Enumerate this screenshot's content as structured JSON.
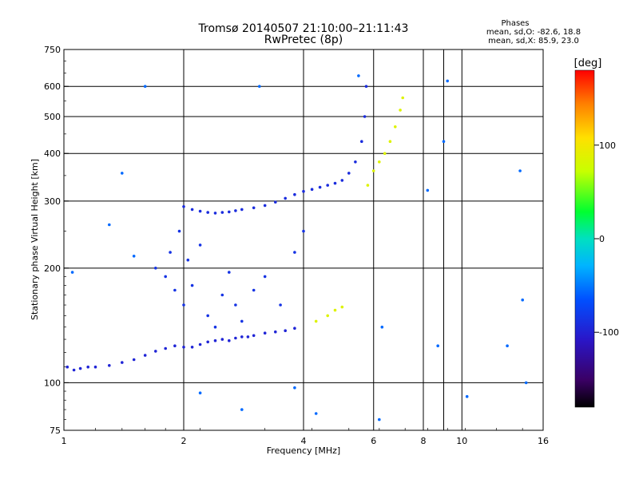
{
  "chart_data": {
    "type": "scatter",
    "title": "Tromsø 20140507 21:10:00–21:11:43",
    "subtitle": "RwPretec (8p)",
    "xlabel": "Frequency [MHz]",
    "ylabel": "Stationary phase Virtual Height [km]",
    "x_scale": "log",
    "y_scale": "log",
    "xlim": [
      1,
      16
    ],
    "ylim": [
      75,
      750
    ],
    "x_ticks": [
      1,
      2,
      4,
      6,
      8,
      10,
      16
    ],
    "x_tick_labels": [
      "1",
      "2",
      "4",
      "6",
      "8",
      "10",
      "16"
    ],
    "x_grid": [
      2,
      4,
      6,
      8,
      9,
      10
    ],
    "y_ticks": [
      75,
      100,
      200,
      300,
      400,
      500,
      600,
      750
    ],
    "y_tick_labels": [
      "75",
      "100",
      "200",
      "300",
      "400",
      "500",
      "600",
      "750"
    ],
    "y_grid": [
      100,
      200,
      300,
      400,
      500,
      600
    ],
    "grid": true,
    "phase_stats": {
      "heading": "Phases",
      "line_o": "mean, sd,O: -82.6, 18.8",
      "line_x": "mean, sd,X:  85.9, 23.0"
    },
    "colorbar": {
      "label": "[deg]",
      "min": -180,
      "max": 180,
      "ticks": [
        100,
        0,
        -100
      ],
      "tick_labels": [
        "100",
        "0",
        "-100"
      ],
      "colormap": "rainbow"
    },
    "series": [
      {
        "role": "o_mode_low_trace",
        "points": [
          [
            1.02,
            110
          ],
          [
            1.06,
            108
          ],
          [
            1.1,
            109
          ],
          [
            1.15,
            110
          ],
          [
            1.2,
            110
          ],
          [
            1.3,
            111
          ],
          [
            1.4,
            113
          ],
          [
            1.5,
            115
          ],
          [
            1.6,
            118
          ],
          [
            1.7,
            121
          ],
          [
            1.8,
            123
          ],
          [
            1.9,
            125
          ],
          [
            2.0,
            124
          ],
          [
            2.1,
            124
          ],
          [
            2.2,
            126
          ],
          [
            2.3,
            128
          ],
          [
            2.4,
            129
          ],
          [
            2.5,
            130
          ],
          [
            2.6,
            129
          ],
          [
            2.7,
            131
          ],
          [
            2.8,
            132
          ],
          [
            2.9,
            132
          ],
          [
            3.0,
            133
          ],
          [
            3.2,
            135
          ],
          [
            3.4,
            136
          ],
          [
            3.6,
            137
          ],
          [
            3.8,
            139
          ]
        ],
        "phase": -100
      },
      {
        "role": "o_mode_f_trace",
        "points": [
          [
            2.0,
            290
          ],
          [
            2.1,
            285
          ],
          [
            2.2,
            282
          ],
          [
            2.3,
            280
          ],
          [
            2.4,
            279
          ],
          [
            2.5,
            280
          ],
          [
            2.6,
            281
          ],
          [
            2.7,
            283
          ],
          [
            2.8,
            285
          ],
          [
            3.0,
            288
          ],
          [
            3.2,
            292
          ],
          [
            3.4,
            298
          ],
          [
            3.6,
            305
          ],
          [
            3.8,
            312
          ],
          [
            4.0,
            318
          ],
          [
            4.2,
            322
          ],
          [
            4.4,
            326
          ],
          [
            4.6,
            330
          ],
          [
            4.8,
            334
          ],
          [
            5.0,
            340
          ],
          [
            5.2,
            355
          ],
          [
            5.4,
            380
          ],
          [
            5.6,
            430
          ],
          [
            5.7,
            500
          ],
          [
            5.75,
            600
          ]
        ],
        "phase": -95
      },
      {
        "role": "x_mode_trace",
        "points": [
          [
            4.3,
            145
          ],
          [
            4.6,
            150
          ],
          [
            4.8,
            155
          ],
          [
            5.0,
            158
          ],
          [
            5.8,
            330
          ],
          [
            6.0,
            360
          ],
          [
            6.2,
            380
          ],
          [
            6.4,
            400
          ],
          [
            6.6,
            430
          ],
          [
            6.8,
            470
          ],
          [
            7.0,
            520
          ],
          [
            7.1,
            560
          ]
        ],
        "phase": 85
      },
      {
        "role": "spread_echoes",
        "points": [
          [
            1.7,
            200
          ],
          [
            1.8,
            190
          ],
          [
            1.85,
            220
          ],
          [
            1.9,
            175
          ],
          [
            1.95,
            250
          ],
          [
            2.0,
            160
          ],
          [
            2.05,
            210
          ],
          [
            2.1,
            180
          ],
          [
            2.2,
            230
          ],
          [
            2.3,
            150
          ],
          [
            2.4,
            140
          ],
          [
            2.5,
            170
          ],
          [
            2.6,
            195
          ],
          [
            2.7,
            160
          ],
          [
            2.8,
            145
          ],
          [
            3.0,
            175
          ],
          [
            3.2,
            190
          ],
          [
            3.5,
            160
          ],
          [
            3.8,
            220
          ],
          [
            4.0,
            250
          ]
        ],
        "phase": -90
      },
      {
        "role": "scattered_points",
        "points": [
          [
            1.05,
            195
          ],
          [
            1.3,
            260
          ],
          [
            1.4,
            355
          ],
          [
            1.5,
            215
          ],
          [
            1.6,
            600
          ],
          [
            2.2,
            94
          ],
          [
            2.8,
            85
          ],
          [
            3.1,
            600
          ],
          [
            3.8,
            97
          ],
          [
            4.3,
            83
          ],
          [
            5.5,
            640
          ],
          [
            6.2,
            80
          ],
          [
            6.3,
            140
          ],
          [
            8.2,
            320
          ],
          [
            8.7,
            125
          ],
          [
            9.0,
            430
          ],
          [
            9.2,
            620
          ],
          [
            10.3,
            92
          ],
          [
            13.0,
            125
          ],
          [
            14.0,
            360
          ],
          [
            14.2,
            165
          ],
          [
            14.5,
            100
          ]
        ],
        "phase": -60
      }
    ]
  }
}
